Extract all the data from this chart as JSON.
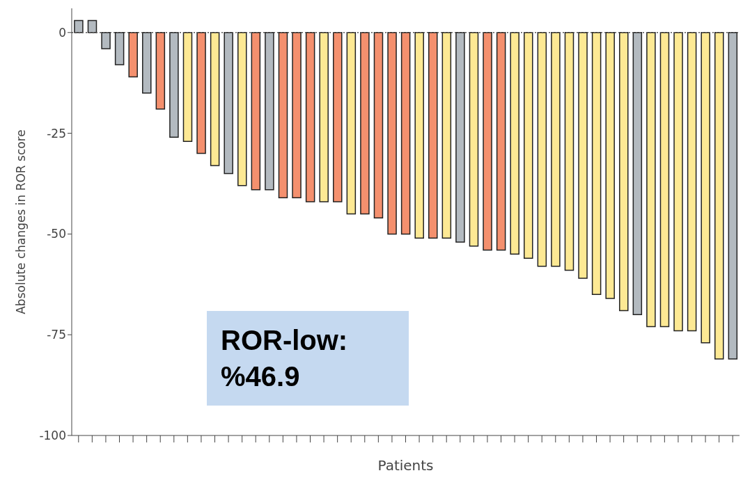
{
  "chart_data": {
    "type": "bar",
    "xlabel": "Patients",
    "ylabel": "Absolute changes in ROR score",
    "categories": [
      null,
      null,
      null,
      null,
      null,
      null,
      null,
      null,
      null,
      null,
      null,
      null,
      null,
      null,
      null,
      null,
      null,
      null,
      null,
      null,
      null,
      null,
      null,
      null,
      null,
      null,
      null,
      null,
      null,
      null,
      null,
      null,
      null,
      null,
      null,
      null,
      null,
      null,
      null,
      null,
      null,
      null,
      null,
      null,
      null,
      null,
      null,
      null,
      null
    ],
    "values": [
      3,
      3,
      -4,
      -8,
      -11,
      -15,
      -19,
      -26,
      -27,
      -30,
      -33,
      -35,
      -38,
      -39,
      -39,
      -41,
      -41,
      -42,
      -42,
      -42,
      -45,
      -45,
      -46,
      -50,
      -50,
      -51,
      -51,
      -51,
      -52,
      -53,
      -54,
      -54,
      -55,
      -56,
      -58,
      -58,
      -59,
      -61,
      -65,
      -66,
      -69,
      -70,
      -73,
      -73,
      -74,
      -74,
      -77,
      -81,
      -81
    ],
    "colors": [
      "#b3bac0",
      "#b3bac0",
      "#b3bac0",
      "#b3bac0",
      "#f4906e",
      "#b3bac0",
      "#f4906e",
      "#b3bac0",
      "#fde994",
      "#f4906e",
      "#fde994",
      "#b3bac0",
      "#fde994",
      "#f4906e",
      "#b3bac0",
      "#f4906e",
      "#f4906e",
      "#f4906e",
      "#fde994",
      "#f4906e",
      "#fde994",
      "#f4906e",
      "#f4906e",
      "#f4906e",
      "#f4906e",
      "#fde994",
      "#f4906e",
      "#fde994",
      "#b3bac0",
      "#fde994",
      "#f4906e",
      "#f4906e",
      "#fde994",
      "#fde994",
      "#fde994",
      "#fde994",
      "#fde994",
      "#fde994",
      "#fde994",
      "#fde994",
      "#fde994",
      "#b3bac0",
      "#fde994",
      "#fde994",
      "#fde994",
      "#fde994",
      "#fde994",
      "#fde994",
      "#b3bac0"
    ],
    "ylim": [
      -100,
      6
    ],
    "yticks": [
      0,
      -25,
      -50,
      -75,
      -100
    ],
    "ref_lines": [
      {
        "axis": "y",
        "value": 0,
        "line_style": "dotted",
        "color": "#555555"
      }
    ],
    "annotations": [
      "ROR-low: %46.9"
    ]
  }
}
